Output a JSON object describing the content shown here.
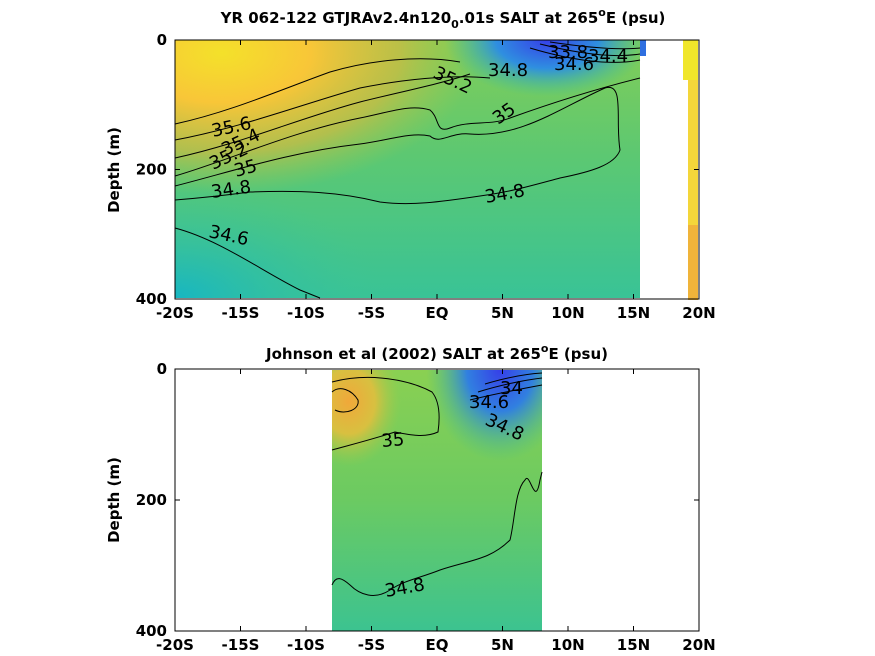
{
  "chart_data": [
    {
      "type": "heatmap",
      "title_parts": [
        "YR 062-122 GTJRAv2.4n120",
        "0",
        ".01s SALT at 265",
        "o",
        "E (psu)"
      ],
      "ylabel": "Depth (m)",
      "x_ticks": [
        "-20S",
        "-15S",
        "-10S",
        "-5S",
        "EQ",
        "5N",
        "10N",
        "15N",
        "20N"
      ],
      "y_ticks": [
        "0",
        "200",
        "400"
      ],
      "xlim": [
        -20,
        20
      ],
      "ylim": [
        0,
        400
      ],
      "data_extent_lat": [
        -20,
        15.5
      ],
      "contour_labels": [
        "35.6",
        "35.4",
        "35.2",
        "35",
        "34.8",
        "34.6",
        "34.8",
        "35",
        "35.2",
        "34.8",
        "33.8",
        "34.4",
        "34.6"
      ],
      "colors": {
        "high": "#f2d22e",
        "mid": "#7ccd5c",
        "low": "#2fbfa5",
        "fresh": "#3a4fe0"
      }
    },
    {
      "type": "heatmap",
      "title_parts": [
        "Johnson et al (2002) SALT at 265",
        "o",
        "E (psu)"
      ],
      "ylabel": "Depth (m)",
      "x_ticks": [
        "-20S",
        "-15S",
        "-10S",
        "-5S",
        "EQ",
        "5N",
        "10N",
        "15N",
        "20N"
      ],
      "y_ticks": [
        "0",
        "200",
        "400"
      ],
      "xlim": [
        -20,
        20
      ],
      "ylim": [
        0,
        400
      ],
      "data_extent_lat": [
        -8,
        8
      ],
      "contour_labels": [
        "35",
        "34.8",
        "34.6",
        "34.8",
        "34"
      ],
      "colors": {
        "high": "#f0b838",
        "mid": "#7ccd5c",
        "low": "#36c49a",
        "fresh": "#3a4fe0"
      }
    }
  ]
}
